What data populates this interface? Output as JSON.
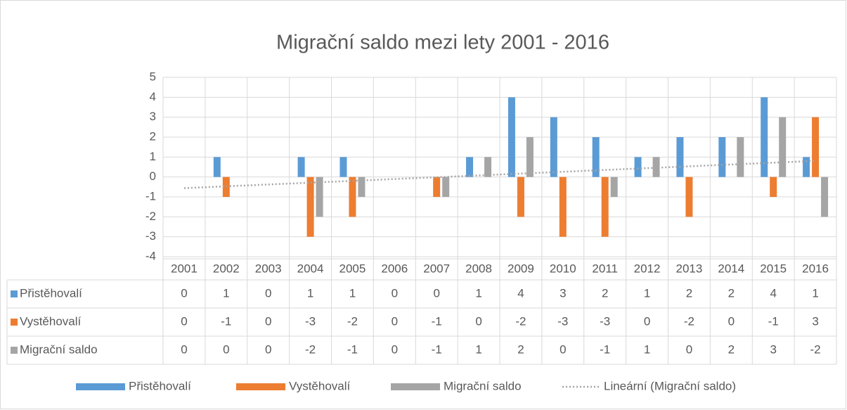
{
  "chart_data": {
    "type": "bar",
    "title": "Migrační saldo mezi lety 2001 - 2016",
    "categories": [
      "2001",
      "2002",
      "2003",
      "2004",
      "2005",
      "2006",
      "2007",
      "2008",
      "2009",
      "2010",
      "2011",
      "2012",
      "2013",
      "2014",
      "2015",
      "2016"
    ],
    "series": [
      {
        "name": "Přistěhovalí",
        "color": "#5b9bd5",
        "values": [
          0,
          1,
          0,
          1,
          1,
          0,
          0,
          1,
          4,
          3,
          2,
          1,
          2,
          2,
          4,
          1
        ]
      },
      {
        "name": "Vystěhovalí",
        "color": "#ed7d31",
        "values": [
          0,
          -1,
          0,
          -3,
          -2,
          0,
          -1,
          0,
          -2,
          -3,
          -3,
          0,
          -2,
          0,
          -1,
          3
        ]
      },
      {
        "name": "Migrační saldo",
        "color": "#a5a5a5",
        "values": [
          0,
          0,
          0,
          -2,
          -1,
          0,
          -1,
          1,
          2,
          0,
          -1,
          1,
          0,
          2,
          3,
          -2
        ]
      }
    ],
    "trendline": {
      "label": "Lineární (Migrační saldo)",
      "of": "Migrační saldo",
      "color": "#a5a5a5"
    },
    "ylim": [
      -4,
      5
    ],
    "yticks": [
      -4,
      -3,
      -2,
      -1,
      0,
      1,
      2,
      3,
      4,
      5
    ],
    "grid": true,
    "data_table": true,
    "legend": "bottom"
  }
}
